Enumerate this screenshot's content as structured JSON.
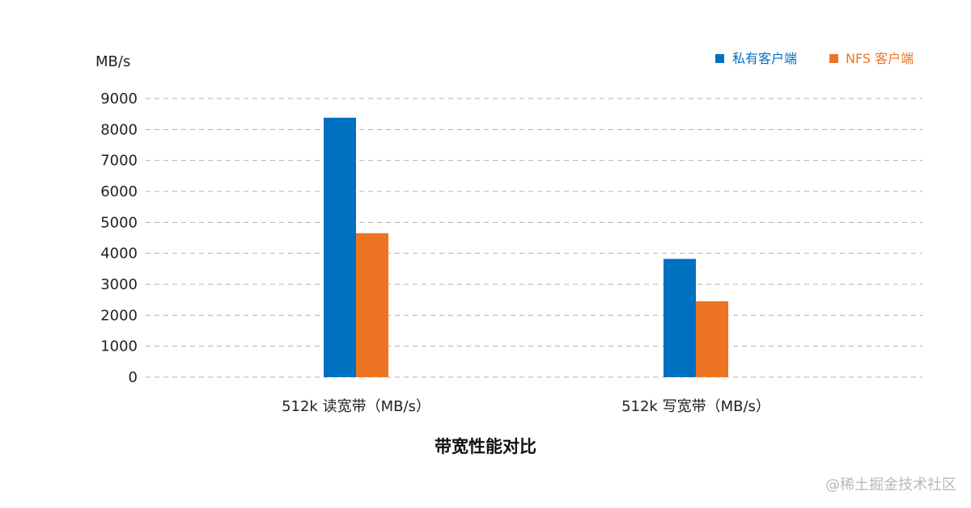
{
  "chart_data": {
    "type": "bar",
    "title": "带宽性能对比",
    "ylabel": "MB/s",
    "xlabel": "",
    "categories": [
      "512k 读宽带（MB/s）",
      "512k 写宽带（MB/s）"
    ],
    "series": [
      {
        "name": "私有客户端",
        "color": "#0070C0",
        "values": [
          8380,
          3820
        ]
      },
      {
        "name": "NFS 客户端",
        "color": "#ED7423",
        "values": [
          4650,
          2450
        ]
      }
    ],
    "ylim": [
      0,
      9000
    ],
    "yticks": [
      "0",
      "1000",
      "2000",
      "3000",
      "4000",
      "5000",
      "6000",
      "7000",
      "8000",
      "9000"
    ],
    "grid": true,
    "legend_position": "top-right"
  },
  "watermark": "@稀土掘金技术社区"
}
